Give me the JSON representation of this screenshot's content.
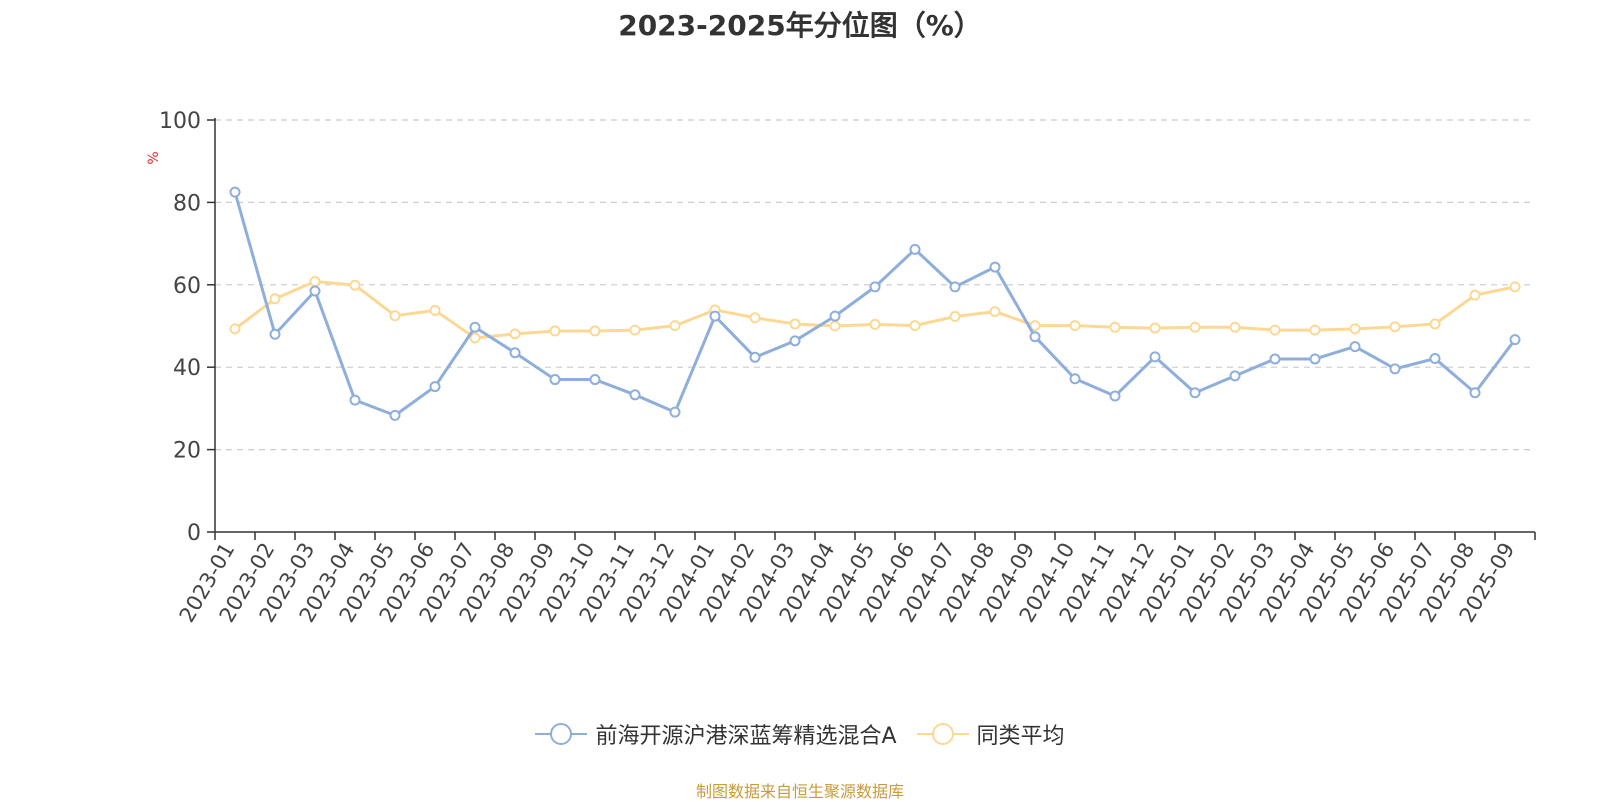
{
  "chart_data": {
    "type": "line",
    "title": "2023-2025年分位图（%）",
    "ylabel": "%",
    "xlabel": "",
    "ylim": [
      0,
      100
    ],
    "yticks": [
      0,
      20,
      40,
      60,
      80,
      100
    ],
    "grid": true,
    "legend_position": "bottom",
    "categories": [
      "2023-01",
      "2023-02",
      "2023-03",
      "2023-04",
      "2023-05",
      "2023-06",
      "2023-07",
      "2023-08",
      "2023-09",
      "2023-10",
      "2023-11",
      "2023-12",
      "2024-01",
      "2024-02",
      "2024-03",
      "2024-04",
      "2024-05",
      "2024-06",
      "2024-07",
      "2024-08",
      "2024-09",
      "2024-10",
      "2024-11",
      "2024-12",
      "2025-01",
      "2025-02",
      "2025-03",
      "2025-04",
      "2025-05",
      "2025-06",
      "2025-07",
      "2025-08",
      "2025-09"
    ],
    "series": [
      {
        "name": "前海开源沪港深蓝筹精选混合A",
        "color": "#8eaedb",
        "values": [
          82.5,
          48.0,
          58.5,
          32.0,
          28.3,
          35.3,
          49.7,
          43.5,
          37.0,
          37.0,
          33.3,
          29.1,
          52.4,
          42.4,
          46.4,
          52.4,
          59.5,
          68.6,
          59.5,
          64.3,
          47.4,
          37.2,
          33.0,
          42.5,
          33.8,
          37.9,
          42.0,
          42.0,
          45.0,
          39.6,
          42.1,
          33.8,
          46.7
        ]
      },
      {
        "name": "同类平均",
        "color": "#fcd895",
        "values": [
          49.3,
          56.6,
          60.8,
          59.9,
          52.5,
          53.8,
          47.1,
          48.1,
          48.8,
          48.8,
          49.0,
          50.1,
          53.9,
          52.0,
          50.5,
          50.0,
          50.4,
          50.1,
          52.3,
          53.5,
          50.1,
          50.1,
          49.7,
          49.5,
          49.7,
          49.7,
          49.0,
          49.0,
          49.3,
          49.8,
          50.5,
          57.5,
          59.5
        ]
      }
    ]
  },
  "footer": {
    "source": "制图数据来自恒生聚源数据库",
    "source_color": "#c89b3c"
  }
}
